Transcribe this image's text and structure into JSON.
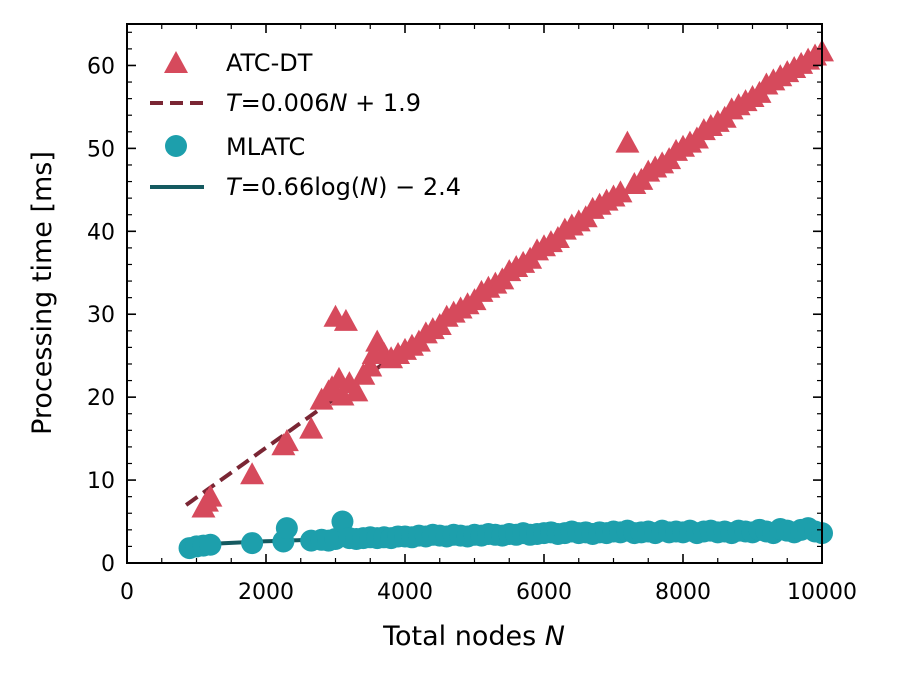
{
  "chart_data": {
    "type": "scatter",
    "xlabel": "Total nodes ",
    "xlabel_var": "N",
    "ylabel": "Processing time [ms]",
    "xlim": [
      0,
      10000
    ],
    "ylim": [
      0,
      65
    ],
    "x_ticks": [
      0,
      2000,
      4000,
      6000,
      8000,
      10000
    ],
    "x_tick_labels": [
      "0",
      "2000",
      "4000",
      "6000",
      "8000",
      "10000"
    ],
    "y_ticks": [
      0,
      10,
      20,
      30,
      40,
      50,
      60
    ],
    "y_tick_labels": [
      "0",
      "10",
      "20",
      "30",
      "40",
      "50",
      "60"
    ],
    "grid": false,
    "legend_position": "top-left",
    "legend": [
      {
        "text": "ATC-DT",
        "kind": "triangle",
        "color": "#d64a5c"
      },
      {
        "text": "=0.006",
        "pre": "T",
        "var": "N",
        "post": " + 1.9",
        "kind": "dashed",
        "color": "#7a2634"
      },
      {
        "text": "MLATC",
        "kind": "circle",
        "color": "#1d9fac"
      },
      {
        "text": "=0.66log(",
        "pre": "T",
        "var": "N",
        "post": ") − 2.4",
        "kind": "solid",
        "color": "#155a60"
      }
    ],
    "series": [
      {
        "name": "ATC-DT",
        "marker": "triangle",
        "color": "#d64a5c",
        "points": [
          [
            1100,
            6.5
          ],
          [
            1150,
            7.2
          ],
          [
            1200,
            7.8
          ],
          [
            1800,
            10.5
          ],
          [
            2250,
            14.0
          ],
          [
            2300,
            14.5
          ],
          [
            2650,
            16.0
          ],
          [
            2800,
            19.5
          ],
          [
            2900,
            20.5
          ],
          [
            2950,
            21.0
          ],
          [
            3000,
            29.5
          ],
          [
            3050,
            22.0
          ],
          [
            3100,
            20.0
          ],
          [
            3150,
            29.0
          ],
          [
            3200,
            21.5
          ],
          [
            3300,
            20.5
          ],
          [
            3400,
            22.5
          ],
          [
            3500,
            23.5
          ],
          [
            3550,
            25.0
          ],
          [
            3600,
            26.5
          ],
          [
            3700,
            25.0
          ],
          [
            3800,
            24.5
          ],
          [
            3900,
            25.0
          ],
          [
            4000,
            25.5
          ],
          [
            4100,
            26.0
          ],
          [
            4200,
            26.5
          ],
          [
            4300,
            27.5
          ],
          [
            4400,
            28.0
          ],
          [
            4500,
            28.5
          ],
          [
            4600,
            29.5
          ],
          [
            4700,
            30.0
          ],
          [
            4800,
            30.5
          ],
          [
            4900,
            31.0
          ],
          [
            5000,
            31.5
          ],
          [
            5100,
            32.5
          ],
          [
            5200,
            33.0
          ],
          [
            5300,
            33.5
          ],
          [
            5400,
            34.0
          ],
          [
            5500,
            35.0
          ],
          [
            5600,
            35.5
          ],
          [
            5700,
            36.0
          ],
          [
            5800,
            36.5
          ],
          [
            5900,
            37.5
          ],
          [
            6000,
            38.0
          ],
          [
            6100,
            38.5
          ],
          [
            6200,
            39.0
          ],
          [
            6300,
            40.0
          ],
          [
            6400,
            40.5
          ],
          [
            6500,
            41.0
          ],
          [
            6600,
            41.5
          ],
          [
            6700,
            42.5
          ],
          [
            6800,
            43.0
          ],
          [
            6900,
            43.5
          ],
          [
            7000,
            44.0
          ],
          [
            7100,
            44.5
          ],
          [
            7200,
            50.5
          ],
          [
            7300,
            45.5
          ],
          [
            7400,
            46.0
          ],
          [
            7500,
            47.0
          ],
          [
            7600,
            47.5
          ],
          [
            7700,
            48.0
          ],
          [
            7800,
            48.5
          ],
          [
            7900,
            49.5
          ],
          [
            8000,
            50.0
          ],
          [
            8100,
            50.5
          ],
          [
            8200,
            51.0
          ],
          [
            8300,
            52.0
          ],
          [
            8400,
            52.5
          ],
          [
            8500,
            53.0
          ],
          [
            8600,
            53.5
          ],
          [
            8700,
            54.5
          ],
          [
            8800,
            55.0
          ],
          [
            8900,
            55.5
          ],
          [
            9000,
            56.0
          ],
          [
            9100,
            56.5
          ],
          [
            9200,
            57.5
          ],
          [
            9300,
            58.0
          ],
          [
            9400,
            58.5
          ],
          [
            9500,
            59.0
          ],
          [
            9600,
            59.5
          ],
          [
            9700,
            60.0
          ],
          [
            9800,
            60.5
          ],
          [
            9900,
            61.0
          ],
          [
            10000,
            61.5
          ]
        ]
      },
      {
        "name": "MLATC",
        "marker": "circle",
        "color": "#1d9fac",
        "points": [
          [
            900,
            1.8
          ],
          [
            1000,
            2.0
          ],
          [
            1100,
            2.1
          ],
          [
            1200,
            2.2
          ],
          [
            1800,
            2.4
          ],
          [
            2250,
            2.6
          ],
          [
            2300,
            4.2
          ],
          [
            2650,
            2.7
          ],
          [
            2800,
            2.8
          ],
          [
            2900,
            2.7
          ],
          [
            3000,
            2.9
          ],
          [
            3100,
            5.0
          ],
          [
            3200,
            3.0
          ],
          [
            3300,
            2.9
          ],
          [
            3400,
            3.0
          ],
          [
            3500,
            3.1
          ],
          [
            3600,
            3.0
          ],
          [
            3700,
            3.1
          ],
          [
            3800,
            3.0
          ],
          [
            3900,
            3.2
          ],
          [
            4000,
            3.2
          ],
          [
            4100,
            3.1
          ],
          [
            4200,
            3.3
          ],
          [
            4300,
            3.2
          ],
          [
            4400,
            3.4
          ],
          [
            4500,
            3.3
          ],
          [
            4600,
            3.2
          ],
          [
            4700,
            3.4
          ],
          [
            4800,
            3.3
          ],
          [
            4900,
            3.2
          ],
          [
            5000,
            3.4
          ],
          [
            5100,
            3.3
          ],
          [
            5200,
            3.5
          ],
          [
            5300,
            3.4
          ],
          [
            5400,
            3.3
          ],
          [
            5500,
            3.5
          ],
          [
            5600,
            3.4
          ],
          [
            5700,
            3.6
          ],
          [
            5800,
            3.4
          ],
          [
            5900,
            3.5
          ],
          [
            6000,
            3.6
          ],
          [
            6100,
            3.7
          ],
          [
            6200,
            3.5
          ],
          [
            6300,
            3.6
          ],
          [
            6400,
            3.8
          ],
          [
            6500,
            3.6
          ],
          [
            6600,
            3.7
          ],
          [
            6700,
            3.5
          ],
          [
            6800,
            3.7
          ],
          [
            6900,
            3.6
          ],
          [
            7000,
            3.8
          ],
          [
            7100,
            3.7
          ],
          [
            7200,
            3.9
          ],
          [
            7300,
            3.6
          ],
          [
            7400,
            3.7
          ],
          [
            7500,
            3.8
          ],
          [
            7600,
            3.6
          ],
          [
            7700,
            3.9
          ],
          [
            7800,
            3.7
          ],
          [
            7900,
            3.8
          ],
          [
            8000,
            3.7
          ],
          [
            8100,
            3.9
          ],
          [
            8200,
            3.6
          ],
          [
            8300,
            3.8
          ],
          [
            8400,
            3.9
          ],
          [
            8500,
            3.7
          ],
          [
            8600,
            3.8
          ],
          [
            8700,
            3.6
          ],
          [
            8800,
            3.9
          ],
          [
            8900,
            3.8
          ],
          [
            9000,
            3.7
          ],
          [
            9100,
            4.0
          ],
          [
            9200,
            3.8
          ],
          [
            9300,
            3.6
          ],
          [
            9400,
            4.1
          ],
          [
            9500,
            3.9
          ],
          [
            9600,
            3.7
          ],
          [
            9700,
            4.0
          ],
          [
            9800,
            4.2
          ],
          [
            9900,
            3.8
          ],
          [
            10000,
            3.6
          ]
        ]
      }
    ],
    "fits": [
      {
        "name": "ATC-DT fit",
        "style": "dashed",
        "color": "#7a2634",
        "model": "linear",
        "a": 0.006,
        "b": 1.9,
        "x_range": [
          850,
          10000
        ]
      },
      {
        "name": "MLATC fit",
        "style": "solid",
        "color": "#155a60",
        "model": "log",
        "a": 0.66,
        "b": -2.4,
        "x_range": [
          850,
          10000
        ]
      }
    ]
  }
}
